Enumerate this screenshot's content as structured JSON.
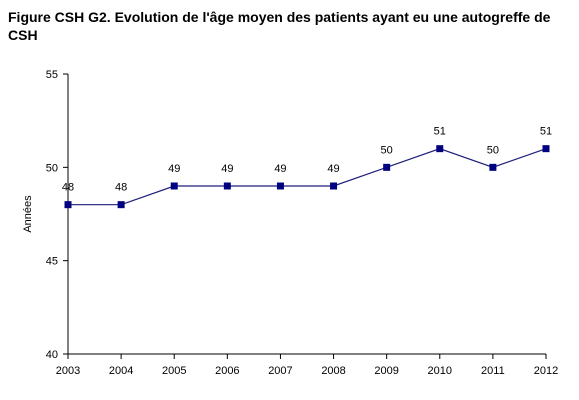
{
  "chart_data": {
    "type": "line",
    "title": "Figure CSH G2. Evolution de l'âge moyen des patients ayant eu une autogreffe de CSH",
    "xlabel": "",
    "ylabel": "Années",
    "categories": [
      "2003",
      "2004",
      "2005",
      "2006",
      "2007",
      "2008",
      "2009",
      "2010",
      "2011",
      "2012"
    ],
    "series": [
      {
        "values": [
          48,
          48,
          49,
          49,
          49,
          49,
          50,
          51,
          50,
          51
        ],
        "labels": [
          "48",
          "48",
          "49",
          "49",
          "49",
          "49",
          "50",
          "51",
          "50",
          "51"
        ]
      }
    ],
    "ylim": [
      40,
      55
    ],
    "yticks": [
      "40",
      "45",
      "50",
      "55"
    ],
    "grid": false,
    "legend": "none",
    "colors": {
      "line": "#1f1f7a",
      "marker": "#000080",
      "axis": "#000000"
    }
  }
}
